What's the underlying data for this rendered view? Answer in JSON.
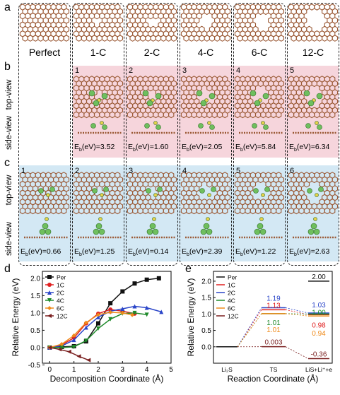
{
  "panel_letters": {
    "a": "a",
    "b": "b",
    "c": "c",
    "d": "d",
    "e": "e"
  },
  "columns": [
    "Perfect",
    "1-C",
    "2-C",
    "4-C",
    "6-C",
    "12-C"
  ],
  "row_labels": {
    "top": "top-view",
    "side": "side-view"
  },
  "row_b": {
    "numbers": [
      "1",
      "2",
      "3",
      "4",
      "5"
    ],
    "eb_prefix": "E",
    "eb_sub": "b",
    "eb_suffix": "(eV)=",
    "values": [
      "3.52",
      "1.60",
      "2.05",
      "5.84",
      "6.34"
    ]
  },
  "row_c": {
    "numbers": [
      "1",
      "2",
      "3",
      "4",
      "5",
      "6"
    ],
    "values": [
      "0.66",
      "1.25",
      "0.14",
      "2.39",
      "1.22",
      "2.63"
    ]
  },
  "colors": {
    "carbon": "#9b5a36",
    "li": "#6fbf5e",
    "s": "#e6d24a",
    "pink": "#f6d5dc",
    "blue": "#d3e8f4"
  },
  "chart_d": {
    "type": "line",
    "ylabel": "Relative Energy (eV)",
    "xlabel": "Decomposition Coordinate (Å)",
    "xlim": [
      -0.3,
      5.0
    ],
    "ylim": [
      -0.45,
      2.2
    ],
    "xticks": [
      "0",
      "1",
      "2",
      "3",
      "4",
      "5"
    ],
    "yticks": [
      "-0.5",
      "0.0",
      "0.5",
      "1.0",
      "1.5",
      "2.0"
    ],
    "series": [
      {
        "name": "Per",
        "color": "#111111",
        "marker": "square",
        "points": [
          [
            0,
            0
          ],
          [
            0.5,
            0.02
          ],
          [
            1.0,
            0.04
          ],
          [
            1.5,
            0.18
          ],
          [
            2.0,
            0.7
          ],
          [
            2.5,
            1.28
          ],
          [
            3.0,
            1.62
          ],
          [
            3.5,
            1.85
          ],
          [
            4.0,
            1.96
          ],
          [
            4.5,
            2.0
          ]
        ]
      },
      {
        "name": "1C",
        "color": "#e02020",
        "marker": "circle",
        "points": [
          [
            0,
            0
          ],
          [
            0.5,
            0.08
          ],
          [
            1.0,
            0.28
          ],
          [
            1.5,
            0.7
          ],
          [
            2.0,
            0.98
          ],
          [
            2.5,
            1.1
          ],
          [
            3.0,
            1.05
          ],
          [
            3.5,
            0.98
          ]
        ]
      },
      {
        "name": "2C",
        "color": "#2a45c8",
        "marker": "triangle",
        "points": [
          [
            0,
            0
          ],
          [
            0.5,
            0.05
          ],
          [
            1.0,
            0.22
          ],
          [
            1.5,
            0.58
          ],
          [
            2.0,
            0.88
          ],
          [
            2.5,
            1.05
          ],
          [
            3.0,
            1.12
          ],
          [
            3.5,
            1.19
          ],
          [
            4.0,
            1.15
          ],
          [
            4.6,
            1.03
          ]
        ]
      },
      {
        "name": "4C",
        "color": "#1f8a2b",
        "marker": "triangle-down",
        "points": [
          [
            0,
            0
          ],
          [
            0.5,
            0.0
          ],
          [
            1.0,
            0.02
          ],
          [
            1.5,
            0.2
          ],
          [
            2.0,
            0.55
          ],
          [
            2.5,
            0.82
          ],
          [
            3.0,
            0.98
          ],
          [
            3.5,
            1.0
          ],
          [
            4.0,
            0.95
          ]
        ]
      },
      {
        "name": "6C",
        "color": "#ef8a1a",
        "marker": "diamond",
        "points": [
          [
            0,
            0
          ],
          [
            0.5,
            0.1
          ],
          [
            1.0,
            0.35
          ],
          [
            1.5,
            0.72
          ],
          [
            2.0,
            0.95
          ],
          [
            2.5,
            1.02
          ],
          [
            3.0,
            1.0
          ],
          [
            3.4,
            0.94
          ]
        ]
      },
      {
        "name": "12C",
        "color": "#7a1f1f",
        "marker": "triangle-left",
        "points": [
          [
            0,
            0
          ],
          [
            0.4,
            -0.05
          ],
          [
            0.8,
            -0.12
          ],
          [
            1.2,
            -0.25
          ],
          [
            1.6,
            -0.36
          ]
        ]
      }
    ]
  },
  "chart_e": {
    "type": "line",
    "ylabel": "Relative Energy (eV)",
    "xlabel": "Reaction Coordinate (Å)",
    "ylim": [
      -0.5,
      2.3
    ],
    "yticks": [
      "0.0",
      "0.5",
      "1.0",
      "1.5",
      "2.0"
    ],
    "categories": [
      "Li₂S",
      "TS",
      "LiS+Li⁺+e"
    ],
    "series": [
      {
        "name": "Per",
        "color": "#111111",
        "ts": null,
        "end": 2.0,
        "end_label": "2.00"
      },
      {
        "name": "1C",
        "color": "#e02020",
        "ts": 1.13,
        "end": 0.98,
        "ts_label": "1.13",
        "end_label": "0.98"
      },
      {
        "name": "2C",
        "color": "#2a45c8",
        "ts": 1.19,
        "end": 1.03,
        "ts_label": "1.19",
        "end_label": "1.03"
      },
      {
        "name": "4C",
        "color": "#1f8a2b",
        "ts": 1.01,
        "end": 1.0,
        "ts_label": "1.01",
        "end_label": "1.00"
      },
      {
        "name": "6C",
        "color": "#ef8a1a",
        "ts": 1.01,
        "end": 0.94,
        "ts_label": "1.01",
        "end_label": "0.94"
      },
      {
        "name": "12C",
        "color": "#7a1f1f",
        "ts": 0.003,
        "end": -0.36,
        "ts_label": "0.003",
        "end_label": "-0.36"
      }
    ]
  }
}
